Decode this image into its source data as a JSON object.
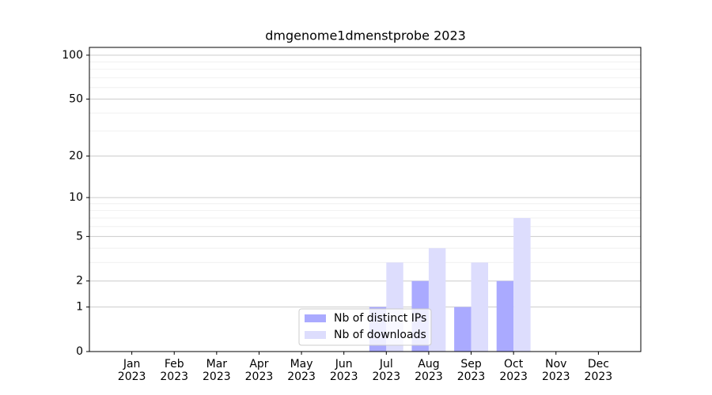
{
  "chart_data": {
    "type": "bar",
    "title": "dmgenome1dmenstprobe 2023",
    "categories": [
      "Jan\n2023",
      "Feb\n2023",
      "Mar\n2023",
      "Apr\n2023",
      "May\n2023",
      "Jun\n2023",
      "Jul\n2023",
      "Aug\n2023",
      "Sep\n2023",
      "Oct\n2023",
      "Nov\n2023",
      "Dec\n2023"
    ],
    "series": [
      {
        "name": "Nb of distinct IPs",
        "color": "#aaaaff",
        "values": [
          0,
          0,
          0,
          0,
          0,
          0,
          1,
          2,
          1,
          2,
          0,
          0
        ]
      },
      {
        "name": "Nb of downloads",
        "color": "#ddddfd",
        "values": [
          0,
          0,
          0,
          0,
          0,
          0,
          3,
          4,
          3,
          7,
          0,
          0
        ]
      }
    ],
    "yscale": "log1p",
    "ylim": [
      0,
      113
    ],
    "yticks": [
      0,
      1,
      2,
      5,
      10,
      20,
      50,
      100
    ],
    "minor_yticks": [
      3,
      4,
      6,
      7,
      8,
      9,
      30,
      40,
      60,
      70,
      80,
      90
    ],
    "grid": true,
    "legend": "lower center"
  }
}
